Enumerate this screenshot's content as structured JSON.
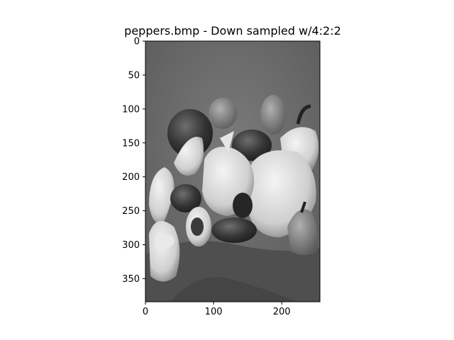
{
  "chart_data": {
    "type": "image",
    "title": "peppers.bmp - Down sampled w/4:2:2",
    "xlabel": "",
    "ylabel": "",
    "xlim": [
      0,
      256
    ],
    "ylim": [
      384,
      0
    ],
    "y_inverted": true,
    "x_ticks": [
      0,
      100,
      200
    ],
    "y_ticks": [
      0,
      50,
      100,
      150,
      200,
      250,
      300,
      350
    ],
    "colormap": "gray",
    "grid": false,
    "legend": "none",
    "image_content": "grayscale photograph of a pile of peppers on a draped cloth"
  }
}
